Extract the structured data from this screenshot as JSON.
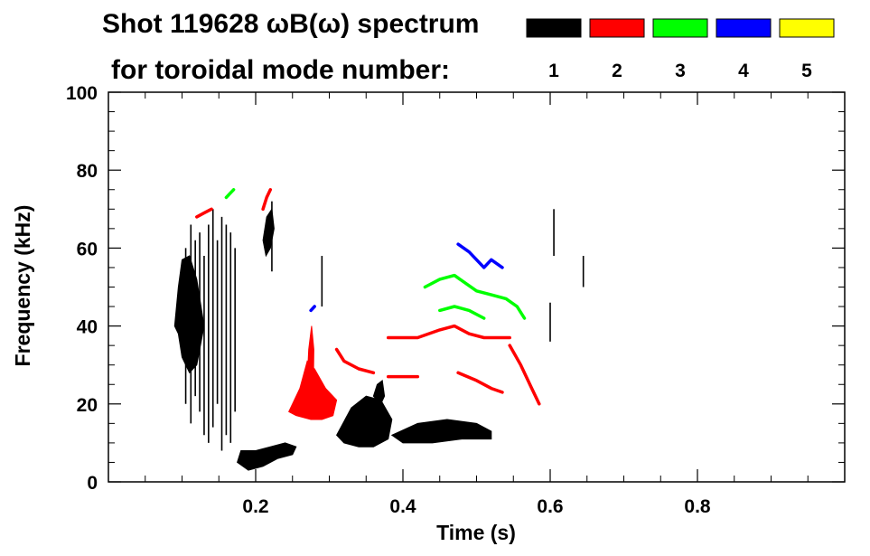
{
  "chart_data": {
    "type": "spectrogram",
    "title": {
      "line1": "Shot 119628 ωB(ω) spectrum",
      "line2": "for toroidal mode number:"
    },
    "xlabel": "Time (s)",
    "ylabel": "Frequency (kHz)",
    "xlim": [
      0.0,
      1.0
    ],
    "ylim": [
      0,
      100
    ],
    "xticks": [
      0.2,
      0.4,
      0.6,
      0.8
    ],
    "xtick_labels": [
      "0.2",
      "0.4",
      "0.6",
      "0.8"
    ],
    "yticks": [
      0,
      20,
      40,
      60,
      80,
      100
    ],
    "ytick_labels": [
      "0",
      "20",
      "40",
      "60",
      "80",
      "100"
    ],
    "legend": [
      {
        "label": "1",
        "color": "#000000"
      },
      {
        "label": "2",
        "color": "#ff0000"
      },
      {
        "label": "3",
        "color": "#00ff00"
      },
      {
        "label": "4",
        "color": "#0000ff"
      },
      {
        "label": "5",
        "color": "#ffff00"
      }
    ],
    "mode_traces": [
      {
        "mode": "1",
        "color": "#000000",
        "kind": "blob",
        "points": [
          [
            0.09,
            40
          ],
          [
            0.095,
            50
          ],
          [
            0.1,
            57
          ],
          [
            0.11,
            58
          ],
          [
            0.12,
            52
          ],
          [
            0.13,
            40
          ],
          [
            0.12,
            30
          ],
          [
            0.11,
            28
          ],
          [
            0.1,
            32
          ],
          [
            0.095,
            38
          ]
        ]
      },
      {
        "mode": "1",
        "color": "#000000",
        "kind": "streaks",
        "t": [
          0.105,
          0.112,
          0.118,
          0.124,
          0.13,
          0.136,
          0.142,
          0.148,
          0.154,
          0.16,
          0.166,
          0.172
        ],
        "f_low": [
          20,
          15,
          22,
          18,
          12,
          10,
          14,
          20,
          8,
          12,
          10,
          18
        ],
        "f_high": [
          60,
          66,
          62,
          64,
          58,
          66,
          70,
          62,
          68,
          66,
          64,
          60
        ]
      },
      {
        "mode": "1",
        "color": "#000000",
        "kind": "blob",
        "points": [
          [
            0.175,
            5
          ],
          [
            0.19,
            3
          ],
          [
            0.21,
            4
          ],
          [
            0.23,
            6
          ],
          [
            0.25,
            7
          ],
          [
            0.255,
            9
          ],
          [
            0.24,
            10
          ],
          [
            0.22,
            9
          ],
          [
            0.2,
            8
          ],
          [
            0.18,
            8
          ]
        ]
      },
      {
        "mode": "1",
        "color": "#000000",
        "kind": "blob",
        "points": [
          [
            0.21,
            62
          ],
          [
            0.215,
            68
          ],
          [
            0.222,
            70
          ],
          [
            0.225,
            65
          ],
          [
            0.22,
            60
          ],
          [
            0.214,
            58
          ]
        ]
      },
      {
        "mode": "1",
        "color": "#000000",
        "kind": "blob",
        "points": [
          [
            0.31,
            12
          ],
          [
            0.33,
            19
          ],
          [
            0.35,
            22
          ],
          [
            0.37,
            21
          ],
          [
            0.385,
            16
          ],
          [
            0.38,
            11
          ],
          [
            0.36,
            9
          ],
          [
            0.34,
            9
          ],
          [
            0.32,
            10
          ]
        ]
      },
      {
        "mode": "1",
        "color": "#000000",
        "kind": "blob",
        "points": [
          [
            0.385,
            12
          ],
          [
            0.42,
            15
          ],
          [
            0.46,
            16
          ],
          [
            0.5,
            15
          ],
          [
            0.52,
            13
          ],
          [
            0.52,
            11
          ],
          [
            0.48,
            11
          ],
          [
            0.44,
            10
          ],
          [
            0.4,
            10
          ]
        ]
      },
      {
        "mode": "1",
        "color": "#000000",
        "kind": "blob",
        "points": [
          [
            0.36,
            22
          ],
          [
            0.365,
            25
          ],
          [
            0.372,
            26
          ],
          [
            0.375,
            22
          ],
          [
            0.37,
            20
          ]
        ]
      },
      {
        "mode": "1",
        "color": "#000000",
        "kind": "streaks",
        "t": [
          0.222,
          0.29,
          0.6,
          0.605,
          0.645
        ],
        "f_low": [
          54,
          45,
          36,
          58,
          50
        ],
        "f_high": [
          72,
          58,
          46,
          70,
          58
        ]
      },
      {
        "mode": "2",
        "color": "#ff0000",
        "kind": "blob",
        "points": [
          [
            0.245,
            18
          ],
          [
            0.26,
            24
          ],
          [
            0.27,
            31
          ],
          [
            0.28,
            29
          ],
          [
            0.295,
            24
          ],
          [
            0.31,
            21
          ],
          [
            0.305,
            17
          ],
          [
            0.29,
            16
          ],
          [
            0.275,
            16
          ],
          [
            0.255,
            17
          ]
        ]
      },
      {
        "mode": "2",
        "color": "#ff0000",
        "kind": "blob",
        "points": [
          [
            0.268,
            18
          ],
          [
            0.272,
            34
          ],
          [
            0.276,
            40
          ],
          [
            0.279,
            34
          ],
          [
            0.278,
            20
          ]
        ]
      },
      {
        "mode": "2",
        "color": "#ff0000",
        "kind": "line",
        "points": [
          [
            0.31,
            34
          ],
          [
            0.32,
            31
          ],
          [
            0.34,
            29
          ],
          [
            0.36,
            28
          ]
        ]
      },
      {
        "mode": "2",
        "color": "#ff0000",
        "kind": "line",
        "points": [
          [
            0.38,
            27
          ],
          [
            0.4,
            27
          ],
          [
            0.42,
            27
          ]
        ]
      },
      {
        "mode": "2",
        "color": "#ff0000",
        "kind": "line",
        "points": [
          [
            0.38,
            37
          ],
          [
            0.42,
            37
          ],
          [
            0.45,
            39
          ],
          [
            0.47,
            40
          ],
          [
            0.49,
            38
          ],
          [
            0.51,
            37
          ],
          [
            0.53,
            37
          ],
          [
            0.545,
            37
          ]
        ]
      },
      {
        "mode": "2",
        "color": "#ff0000",
        "kind": "line",
        "points": [
          [
            0.475,
            28
          ],
          [
            0.5,
            26
          ],
          [
            0.52,
            24
          ],
          [
            0.535,
            23
          ]
        ]
      },
      {
        "mode": "2",
        "color": "#ff0000",
        "kind": "line",
        "points": [
          [
            0.545,
            35
          ],
          [
            0.56,
            30
          ],
          [
            0.575,
            24
          ],
          [
            0.585,
            20
          ]
        ]
      },
      {
        "mode": "2",
        "color": "#ff0000",
        "kind": "line",
        "points": [
          [
            0.12,
            68
          ],
          [
            0.13,
            69
          ],
          [
            0.14,
            70
          ]
        ]
      },
      {
        "mode": "2",
        "color": "#ff0000",
        "kind": "line",
        "points": [
          [
            0.21,
            70
          ],
          [
            0.215,
            73
          ],
          [
            0.22,
            75
          ]
        ]
      },
      {
        "mode": "3",
        "color": "#00ff00",
        "kind": "line",
        "points": [
          [
            0.43,
            50
          ],
          [
            0.45,
            52
          ],
          [
            0.47,
            53
          ],
          [
            0.5,
            49
          ],
          [
            0.52,
            48
          ],
          [
            0.54,
            47
          ],
          [
            0.555,
            45
          ],
          [
            0.565,
            42
          ]
        ]
      },
      {
        "mode": "3",
        "color": "#00ff00",
        "kind": "line",
        "points": [
          [
            0.45,
            44
          ],
          [
            0.47,
            45
          ],
          [
            0.49,
            44
          ],
          [
            0.51,
            42
          ]
        ]
      },
      {
        "mode": "3",
        "color": "#00ff00",
        "kind": "line",
        "points": [
          [
            0.16,
            73
          ],
          [
            0.165,
            74
          ],
          [
            0.17,
            75
          ]
        ]
      },
      {
        "mode": "4",
        "color": "#0000ff",
        "kind": "line",
        "points": [
          [
            0.475,
            61
          ],
          [
            0.49,
            59
          ],
          [
            0.5,
            57
          ],
          [
            0.51,
            55
          ],
          [
            0.52,
            57
          ],
          [
            0.535,
            55
          ]
        ]
      },
      {
        "mode": "4",
        "color": "#0000ff",
        "kind": "line",
        "points": [
          [
            0.275,
            44
          ],
          [
            0.28,
            45
          ]
        ]
      }
    ]
  }
}
